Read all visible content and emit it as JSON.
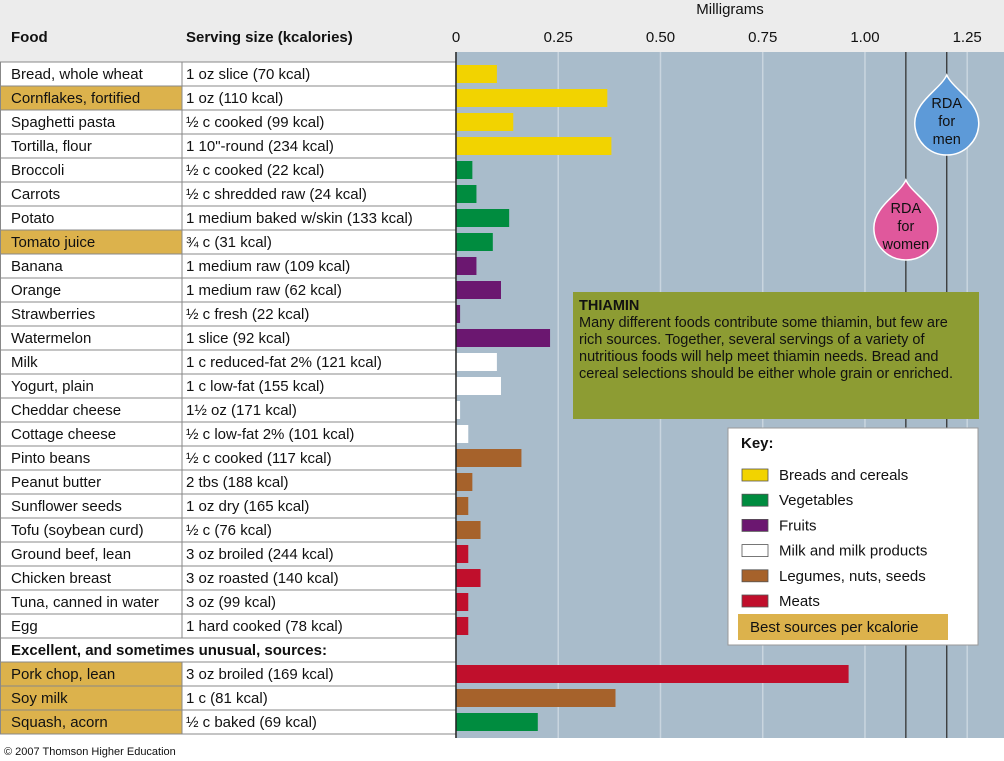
{
  "chart_data": {
    "type": "bar",
    "orientation": "horizontal",
    "x_label": "Milligrams",
    "column_headers": [
      "Food",
      "Serving size (kcalories)"
    ],
    "categories": [
      "Bread, whole wheat",
      "Cornflakes, fortified",
      "Spaghetti pasta",
      "Tortilla, flour",
      "Broccoli",
      "Carrots",
      "Potato",
      "Tomato juice",
      "Banana",
      "Orange",
      "Strawberries",
      "Watermelon",
      "Milk",
      "Yogurt, plain",
      "Cheddar cheese",
      "Cottage cheese",
      "Pinto beans",
      "Peanut butter",
      "Sunflower seeds",
      "Tofu (soybean curd)",
      "Ground beef, lean",
      "Chicken breast",
      "Tuna, canned in water",
      "Egg",
      "Pork chop, lean",
      "Soy milk",
      "Squash, acorn"
    ],
    "serving_sizes": [
      "1 oz slice (70 kcal)",
      "1 oz (110 kcal)",
      "½ c cooked (99 kcal)",
      "1 10\"-round (234 kcal)",
      "½ c cooked (22 kcal)",
      "½ c shredded raw (24 kcal)",
      "1 medium baked w/skin (133 kcal)",
      "¾ c (31 kcal)",
      "1 medium raw (109 kcal)",
      "1 medium raw (62 kcal)",
      "½ c fresh (22 kcal)",
      "1 slice (92 kcal)",
      "1 c reduced-fat 2% (121 kcal)",
      "1 c low-fat (155 kcal)",
      "1½ oz (171 kcal)",
      "½ c low-fat 2% (101 kcal)",
      "½ c cooked (117 kcal)",
      "2 tbs (188 kcal)",
      "1 oz dry (165 kcal)",
      "½ c (76 kcal)",
      "3 oz broiled (244 kcal)",
      "3 oz roasted (140 kcal)",
      "3 oz (99 kcal)",
      "1 hard cooked (78 kcal)",
      "3 oz broiled (169 kcal)",
      "1 c (81 kcal)",
      "½ c baked (69 kcal)"
    ],
    "values": [
      0.1,
      0.37,
      0.14,
      0.38,
      0.04,
      0.05,
      0.13,
      0.09,
      0.05,
      0.11,
      0.01,
      0.23,
      0.1,
      0.11,
      0.01,
      0.03,
      0.16,
      0.04,
      0.03,
      0.06,
      0.03,
      0.06,
      0.03,
      0.03,
      0.96,
      0.39,
      0.2
    ],
    "group": [
      0,
      0,
      0,
      0,
      1,
      1,
      1,
      1,
      2,
      2,
      2,
      2,
      3,
      3,
      3,
      3,
      4,
      4,
      4,
      4,
      5,
      5,
      5,
      5,
      5,
      4,
      1
    ],
    "best_source": [
      false,
      true,
      false,
      false,
      false,
      false,
      false,
      true,
      false,
      false,
      false,
      false,
      false,
      false,
      false,
      false,
      false,
      false,
      false,
      false,
      false,
      false,
      false,
      false,
      true,
      true,
      true
    ],
    "section_label": "Excellent, and sometimes unusual, sources:",
    "legend_title": "Key:",
    "series": [
      {
        "name": "Breads and cereals",
        "color": "#f2d300"
      },
      {
        "name": "Vegetables",
        "color": "#008c3f"
      },
      {
        "name": "Fruits",
        "color": "#6b1770"
      },
      {
        "name": "Milk and milk products",
        "color": "#ffffff"
      },
      {
        "name": "Legumes, nuts, seeds",
        "color": "#a6622b"
      },
      {
        "name": "Meats",
        "color": "#c00f2c"
      }
    ],
    "highlight_label": "Best sources per kcalorie",
    "highlight_color": "#dcb24c",
    "xlim": [
      0,
      1.34
    ],
    "xticks": [
      0,
      0.25,
      {
        "value": 0.5,
        "label": "0.50"
      },
      0.75,
      {
        "value": 1,
        "label": "1.00"
      },
      1.25
    ],
    "grid": true,
    "rda": [
      {
        "label": "RDA for men",
        "value": 1.2,
        "color": "#5d9ad8"
      },
      {
        "label": "RDA for women",
        "value": 1.1,
        "color": "#e0589c"
      }
    ],
    "note_title": "THIAMIN",
    "note_text": "Many different foods contribute some thiamin, but few are rich sources. Together, several servings of  a variety of nutritious foods will help meet thiamin needs. Bread and cereal selections should be either whole grain or enriched.",
    "footer": "© 2007 Thomson Higher Education"
  }
}
